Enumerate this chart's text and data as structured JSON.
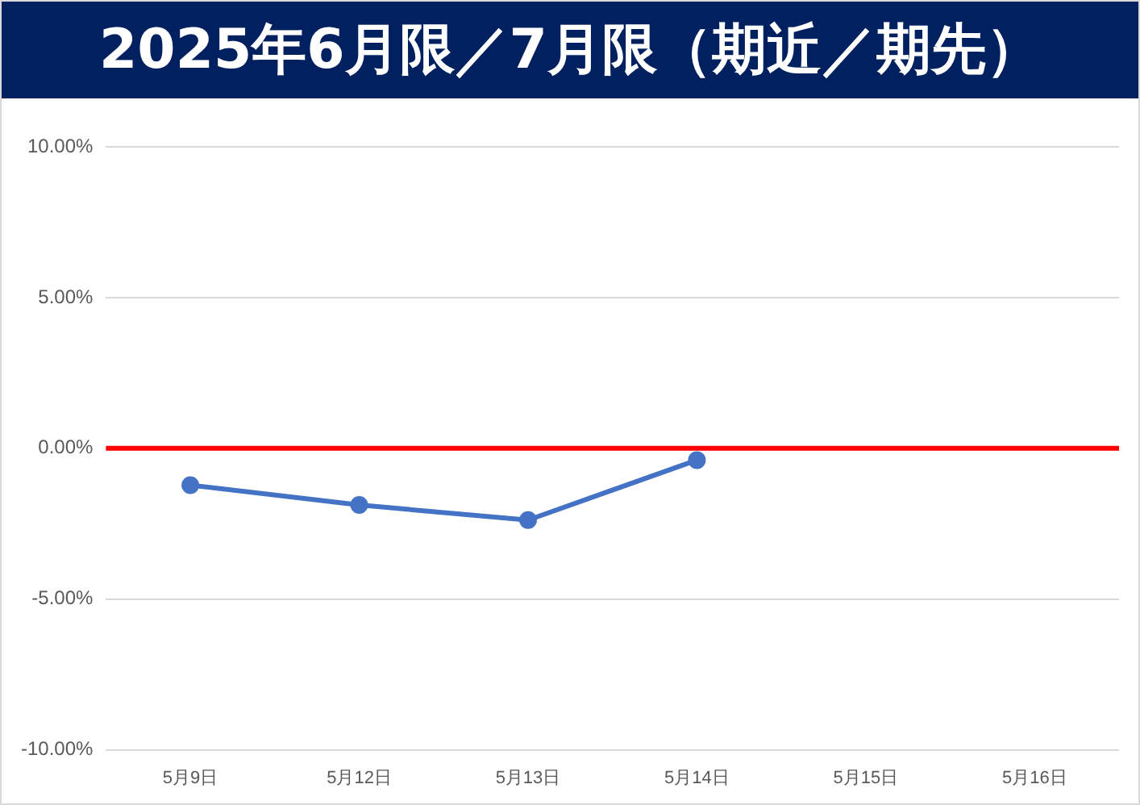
{
  "chart_data": {
    "type": "line",
    "title": "2025年6月限／7月限（期近／期先）",
    "categories": [
      "5月9日",
      "5月12日",
      "5月13日",
      "5月14日",
      "5月15日",
      "5月16日"
    ],
    "series": [
      {
        "color": "#4472c4",
        "values": [
          -1.22,
          -1.88,
          -2.38,
          -0.39,
          null,
          null
        ]
      }
    ],
    "ylim": [
      -10,
      10
    ],
    "yticks": [
      {
        "value": -10,
        "label": "-10.00%"
      },
      {
        "value": -5,
        "label": "-5.00%"
      },
      {
        "value": 0,
        "label": "0.00%"
      },
      {
        "value": 5,
        "label": "5.00%"
      },
      {
        "value": 10,
        "label": "10.00%"
      }
    ],
    "grid": "y",
    "legend": false,
    "marker": "circle",
    "line_style": "solid",
    "ref_lines": [
      {
        "axis": "y",
        "value": 0,
        "color": "#ff0000"
      }
    ]
  }
}
